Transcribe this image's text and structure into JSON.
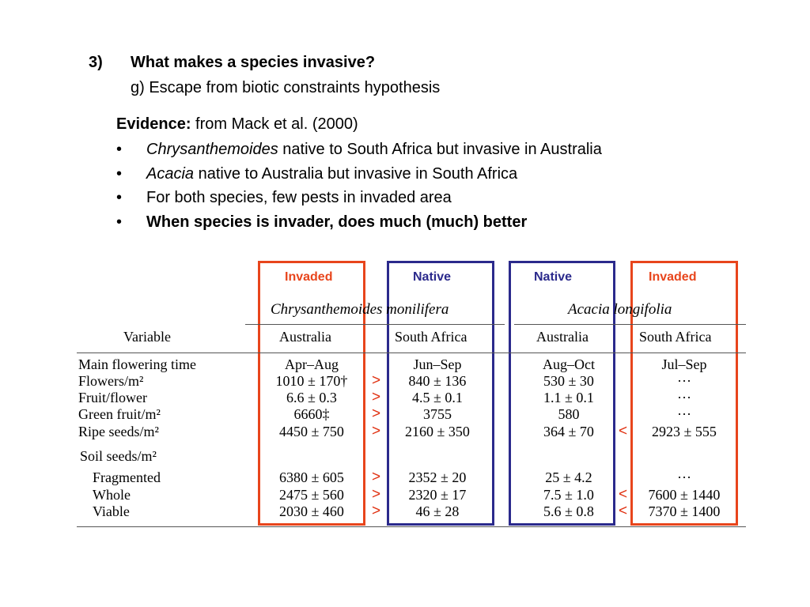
{
  "slide": {
    "heading_number": "3)",
    "heading": "What makes a species invasive?",
    "subheading": "g) Escape from biotic constraints hypothesis",
    "evidence_label": "Evidence:",
    "evidence_source": " from Mack et al. (2000)",
    "bullets": [
      {
        "italic": "Chrysanthemoides",
        "text": " native to South Africa but invasive in Australia",
        "bold": false
      },
      {
        "italic": "Acacia",
        "text": " native to Australia but invasive in South Africa",
        "bold": false
      },
      {
        "italic": "",
        "text": "For both species, few pests in invaded area",
        "bold": false
      },
      {
        "italic": "",
        "text": "When species is invader, does much (much) better",
        "bold": true
      }
    ],
    "bullet_char": "•"
  },
  "annotations": {
    "invaded": "Invaded",
    "native": "Native",
    "colors": {
      "invaded": "#e8451c",
      "native": "#2b2a8c",
      "comparison": "#e03010"
    }
  },
  "table": {
    "species": [
      "Chrysanthemoides monilifera",
      "Acacia longifolia"
    ],
    "variable_header": "Variable",
    "col_headers": [
      "Australia",
      "South Africa",
      "Australia",
      "South Africa"
    ],
    "rows": [
      {
        "label": "Main flowering time",
        "cells": [
          "Apr–Aug",
          "Jun–Sep",
          "Aug–Oct",
          "Jul–Sep"
        ],
        "cmp_left": "",
        "cmp_right": ""
      },
      {
        "label": "Flowers/m²",
        "cells": [
          "1010 ± 170†",
          "840 ± 136",
          "530 ± 30",
          "···"
        ],
        "cmp_left": ">",
        "cmp_right": ""
      },
      {
        "label": "Fruit/flower",
        "cells": [
          "6.6 ± 0.3",
          "4.5 ± 0.1",
          "1.1 ± 0.1",
          "···"
        ],
        "cmp_left": ">",
        "cmp_right": ""
      },
      {
        "label": "Green fruit/m²",
        "cells": [
          "6660‡",
          "3755",
          "580",
          "···"
        ],
        "cmp_left": ">",
        "cmp_right": ""
      },
      {
        "label": "Ripe seeds/m²",
        "cells": [
          "4450 ± 750",
          "2160 ± 350",
          "364 ± 70",
          "2923 ± 555"
        ],
        "cmp_left": ">",
        "cmp_right": "<"
      }
    ],
    "soil_label": "Soil seeds/m²",
    "soil_rows": [
      {
        "label": "Fragmented",
        "cells": [
          "6380 ± 605",
          "2352 ± 20",
          "25 ± 4.2",
          "···"
        ],
        "cmp_left": ">",
        "cmp_right": ""
      },
      {
        "label": "Whole",
        "cells": [
          "2475 ± 560",
          "2320 ± 17",
          "7.5 ± 1.0",
          "7600 ± 1440"
        ],
        "cmp_left": ">",
        "cmp_right": "<"
      },
      {
        "label": "Viable",
        "cells": [
          "2030 ± 460",
          "46 ± 28",
          "5.6 ± 0.8",
          "7370 ± 1400"
        ],
        "cmp_left": ">",
        "cmp_right": "<"
      }
    ]
  }
}
